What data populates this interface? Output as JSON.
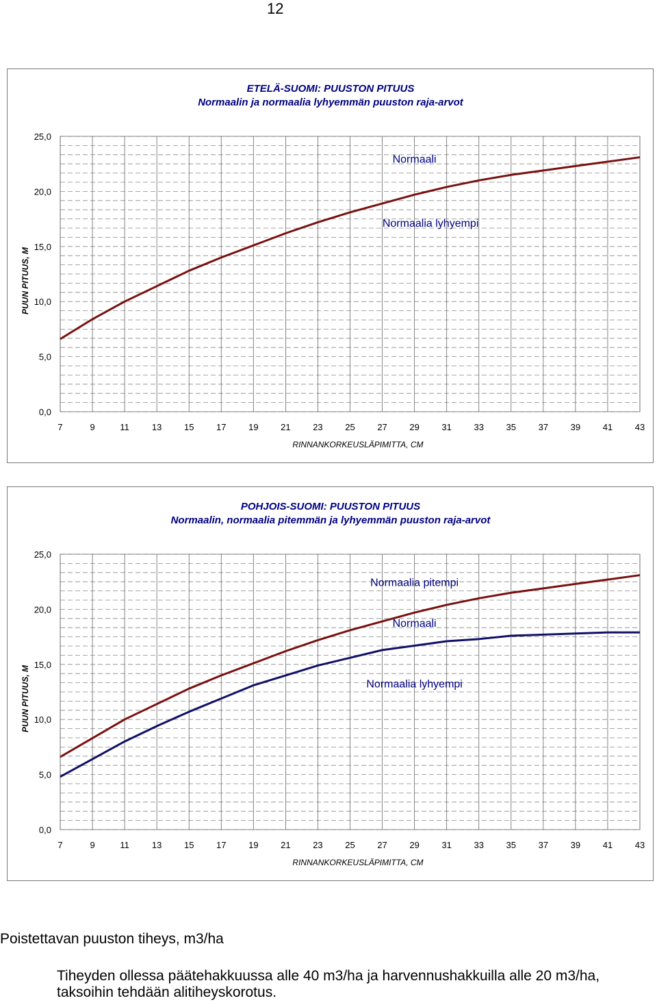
{
  "page_number": "12",
  "chart_data": [
    {
      "type": "line",
      "title": "ETELÄ-SUOMI: PUUSTON PITUUS",
      "subtitle": "Normaalin ja normaalia lyhyemmän puuston raja-arvot",
      "xlabel": "RINNANKORKEUSLÄPIMITTA, CM",
      "ylabel": "PUUN PITUUS, M",
      "x": [
        7,
        9,
        11,
        13,
        15,
        17,
        19,
        21,
        23,
        25,
        27,
        29,
        31,
        33,
        35,
        37,
        39,
        41,
        43
      ],
      "ylim": [
        0,
        25
      ],
      "yticks": [
        "0,0",
        "5,0",
        "10,0",
        "15,0",
        "20,0",
        "25,0"
      ],
      "grid": true,
      "series": [
        {
          "name": "Normaali / Normaalia lyhyempi raja",
          "color": "#7a1010",
          "values": [
            6.6,
            8.4,
            10.0,
            11.4,
            12.8,
            14.0,
            15.1,
            16.2,
            17.2,
            18.1,
            18.9,
            19.7,
            20.4,
            21.0,
            21.5,
            21.9,
            22.3,
            22.7,
            23.1
          ]
        }
      ],
      "annotations": [
        {
          "text": "Normaali",
          "x": 29,
          "y": 22.6
        },
        {
          "text": "Normaalia lyhyempi",
          "x": 30,
          "y": 16.8
        }
      ]
    },
    {
      "type": "line",
      "title": "POHJOIS-SUOMI: PUUSTON PITUUS",
      "subtitle": "Normaalin, normaalia pitemmän ja lyhyemmän puuston raja-arvot",
      "xlabel": "RINNANKORKEUSLÄPIMITTA, CM",
      "ylabel": "PUUN PITUUS, M",
      "x": [
        7,
        9,
        11,
        13,
        15,
        17,
        19,
        21,
        23,
        25,
        27,
        29,
        31,
        33,
        35,
        37,
        39,
        41,
        43
      ],
      "ylim": [
        0,
        25
      ],
      "yticks": [
        "0,0",
        "5,0",
        "10,0",
        "15,0",
        "20,0",
        "25,0"
      ],
      "grid": true,
      "series": [
        {
          "name": "Normaalia pitempi / Normaali raja",
          "color": "#7a1010",
          "values": [
            6.6,
            8.3,
            10.0,
            11.4,
            12.8,
            14.0,
            15.1,
            16.2,
            17.2,
            18.1,
            18.9,
            19.7,
            20.4,
            21.0,
            21.5,
            21.9,
            22.3,
            22.7,
            23.1
          ]
        },
        {
          "name": "Normaali / Normaalia lyhyempi raja",
          "color": "#101066",
          "values": [
            4.8,
            6.4,
            8.0,
            9.4,
            10.7,
            11.9,
            13.1,
            14.0,
            14.9,
            15.6,
            16.3,
            16.7,
            17.1,
            17.3,
            17.6,
            17.7,
            17.8,
            17.9,
            17.9
          ]
        }
      ],
      "annotations": [
        {
          "text": "Normaalia pitempi",
          "x": 29,
          "y": 22.1
        },
        {
          "text": "Normaali",
          "x": 29,
          "y": 18.4
        },
        {
          "text": "Normaalia lyhyempi",
          "x": 29,
          "y": 12.9
        }
      ]
    }
  ],
  "text": {
    "heading": "Poistettavan puuston tiheys, m3/ha",
    "paragraph": "Tiheyden ollessa päätehakkuussa alle 40 m3/ha ja harvennushakkuilla alle 20 m3/ha, taksoihin tehdään alitiheyskorotus."
  }
}
